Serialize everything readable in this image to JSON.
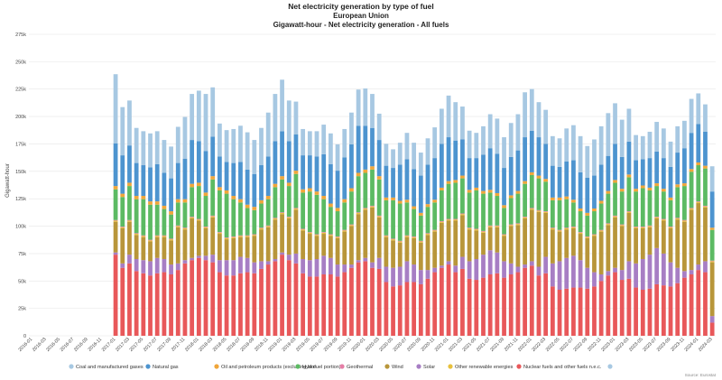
{
  "chart_data": {
    "type": "bar",
    "stacked": true,
    "title": "Net electricity generation by type of fuel",
    "subtitle": "European Union",
    "subtitle2": "Gigawatt-hour - Net electricity generation - All fuels",
    "ylabel": "Gigawatt-hour",
    "xlabel": "",
    "ylim": [
      0,
      275000
    ],
    "yticks": [
      0,
      25000,
      50000,
      75000,
      100000,
      125000,
      150000,
      175000,
      200000,
      225000,
      250000,
      275000
    ],
    "ytick_labels": [
      "0",
      "25k",
      "50k",
      "75k",
      "100k",
      "125k",
      "150k",
      "175k",
      "200k",
      "225k",
      "250k",
      "275k"
    ],
    "grid": true,
    "legend_position": "bottom",
    "source": "Source: Eurostat",
    "categories": [
      "2016-01",
      "2016-02",
      "2016-03",
      "2016-04",
      "2016-05",
      "2016-06",
      "2016-07",
      "2016-08",
      "2016-09",
      "2016-10",
      "2016-11",
      "2016-12",
      "2017-01",
      "2017-02",
      "2017-03",
      "2017-04",
      "2017-05",
      "2017-06",
      "2017-07",
      "2017-08",
      "2017-09",
      "2017-10",
      "2017-11",
      "2017-12",
      "2018-01",
      "2018-02",
      "2018-03",
      "2018-04",
      "2018-05",
      "2018-06",
      "2018-07",
      "2018-08",
      "2018-09",
      "2018-10",
      "2018-11",
      "2018-12",
      "2019-01",
      "2019-02",
      "2019-03",
      "2019-04",
      "2019-05",
      "2019-06",
      "2019-07",
      "2019-08",
      "2019-09",
      "2019-10",
      "2019-11",
      "2019-12",
      "2020-01",
      "2020-02",
      "2020-03",
      "2020-04",
      "2020-05",
      "2020-06",
      "2020-07",
      "2020-08",
      "2020-09",
      "2020-10",
      "2020-11",
      "2020-12",
      "2021-01",
      "2021-02",
      "2021-03",
      "2021-04",
      "2021-05",
      "2021-06",
      "2021-07",
      "2021-08",
      "2021-09",
      "2021-10",
      "2021-11",
      "2021-12",
      "2022-01",
      "2022-02",
      "2022-03",
      "2022-04",
      "2022-05",
      "2022-06",
      "2022-07",
      "2022-08",
      "2022-09",
      "2022-10",
      "2022-11",
      "2022-12",
      "2023-01",
      "2023-02",
      "2023-03",
      "2023-04",
      "2023-05",
      "2023-06",
      "2023-07",
      "2023-08",
      "2023-09",
      "2023-10",
      "2023-11",
      "2023-12",
      "2024-01",
      "2024-02",
      "2024-03"
    ],
    "x_tick_labels": [
      "2016-01",
      "2016-03",
      "2016-05",
      "2016-07",
      "2016-09",
      "2016-11",
      "2017-01",
      "2017-03",
      "2017-05",
      "2017-07",
      "2017-09",
      "2017-11",
      "2018-01",
      "2018-03",
      "2018-05",
      "2018-07",
      "2018-09",
      "2018-11",
      "2019-01",
      "2019-03",
      "2019-05",
      "2019-07",
      "2019-09",
      "2019-11",
      "2020-01",
      "2020-03",
      "2020-05",
      "2020-07",
      "2020-09",
      "2020-11",
      "2021-01",
      "2021-03",
      "2021-05",
      "2021-07",
      "2021-09",
      "2021-11",
      "2022-01",
      "2022-03",
      "2022-05",
      "2022-07",
      "2022-09",
      "2022-11",
      "2023-01",
      "2023-03",
      "2023-05",
      "2023-07",
      "2023-09",
      "2023-11",
      "2024-01",
      "2024-03"
    ],
    "series": [
      {
        "name": "Nuclear fuels and other fuels n.e.c.",
        "color": "#e8585a",
        "values": [
          0,
          0,
          0,
          0,
          0,
          0,
          0,
          0,
          0,
          0,
          0,
          0,
          74000,
          62000,
          66000,
          59000,
          57000,
          55000,
          57000,
          58000,
          56000,
          60000,
          66000,
          69000,
          71000,
          69000,
          67000,
          58000,
          55000,
          55000,
          57000,
          58000,
          57000,
          61000,
          65000,
          68000,
          74000,
          69000,
          66000,
          57000,
          54000,
          54000,
          56000,
          56000,
          54000,
          58000,
          62000,
          67000,
          68000,
          62000,
          61000,
          49000,
          45000,
          46000,
          49000,
          49000,
          47000,
          52000,
          58000,
          62000,
          65000,
          58000,
          61000,
          52000,
          51000,
          53000,
          56000,
          57000,
          53000,
          56000,
          58000,
          62000,
          64000,
          55000,
          57000,
          45000,
          42000,
          43000,
          44000,
          44000,
          43000,
          45000,
          50000,
          55000,
          58000,
          51000,
          52000,
          44000,
          42000,
          43000,
          47000,
          46000,
          45000,
          48000,
          53000,
          56000,
          60000,
          58000,
          12000
        ]
      },
      {
        "name": "Solar",
        "color": "#a77ec4",
        "values": [
          0,
          0,
          0,
          0,
          0,
          0,
          0,
          0,
          0,
          0,
          0,
          0,
          2000,
          4000,
          8000,
          11000,
          12000,
          13000,
          14000,
          12000,
          9000,
          6000,
          3000,
          2000,
          2000,
          4000,
          7000,
          11000,
          14000,
          14000,
          15000,
          13000,
          10000,
          7000,
          3000,
          2000,
          2000,
          5000,
          9000,
          13000,
          15000,
          16000,
          17000,
          15000,
          11000,
          7000,
          3000,
          2000,
          3000,
          5000,
          10000,
          14000,
          17000,
          17000,
          19000,
          16000,
          13000,
          8000,
          4000,
          2000,
          3000,
          6000,
          11000,
          16000,
          19000,
          21000,
          22000,
          19000,
          15000,
          10000,
          5000,
          3000,
          4000,
          8000,
          15000,
          21000,
          26000,
          28000,
          29000,
          25000,
          19000,
          13000,
          6000,
          4000,
          4000,
          9000,
          16000,
          22000,
          28000,
          31000,
          33000,
          29000,
          22000,
          14000,
          6000,
          4000,
          5000,
          10000,
          6000
        ]
      },
      {
        "name": "Wind",
        "color": "#b8963a",
        "values": [
          0,
          0,
          0,
          0,
          0,
          0,
          0,
          0,
          0,
          0,
          0,
          0,
          28000,
          32000,
          30000,
          22000,
          21000,
          18000,
          19000,
          20000,
          22000,
          33000,
          28000,
          36000,
          32000,
          25000,
          34000,
          24000,
          19000,
          20000,
          18000,
          19000,
          24000,
          29000,
          31000,
          36000,
          35000,
          33000,
          40000,
          26000,
          24000,
          21000,
          20000,
          20000,
          24000,
          30000,
          35000,
          42000,
          44000,
          50000,
          37000,
          27000,
          25000,
          22000,
          22000,
          24000,
          25000,
          32000,
          33000,
          39000,
          37000,
          41000,
          38000,
          29000,
          26000,
          20000,
          21000,
          23000,
          23000,
          34000,
          38000,
          42000,
          47000,
          50000,
          40000,
          31000,
          27000,
          26000,
          25000,
          24000,
          27000,
          33000,
          39000,
          42000,
          46000,
          40000,
          44000,
          32000,
          28000,
          25000,
          27000,
          30000,
          31000,
          44000,
          45000,
          55000,
          56000,
          49000,
          49000
        ]
      },
      {
        "name": "Other renewable energies",
        "color": "#e8c13d",
        "values": [
          0,
          0,
          0,
          0,
          0,
          0,
          0,
          0,
          0,
          0,
          0,
          0,
          1000,
          1000,
          1000,
          1000,
          1000,
          1000,
          1000,
          1000,
          1000,
          1000,
          1000,
          1000,
          1000,
          1000,
          1000,
          1000,
          1000,
          1000,
          1000,
          1000,
          1000,
          1000,
          1000,
          1000,
          1000,
          1000,
          1000,
          1000,
          1000,
          1000,
          1000,
          1000,
          1000,
          1000,
          1000,
          1000,
          1000,
          1000,
          1000,
          1000,
          1000,
          1000,
          1000,
          1000,
          1000,
          1000,
          1000,
          1000,
          1000,
          1000,
          1000,
          1000,
          1000,
          1000,
          1000,
          1000,
          1000,
          1000,
          1000,
          1000,
          1000,
          1000,
          1000,
          1000,
          1000,
          1000,
          1000,
          1000,
          1000,
          1000,
          1000,
          1000,
          1000,
          1000,
          1000,
          1000,
          1000,
          1000,
          1000,
          1000,
          1000,
          1000,
          1000,
          1000,
          1000,
          1000,
          1000
        ]
      },
      {
        "name": "Geothermal",
        "color": "#e57ea6",
        "values": [
          0,
          0,
          0,
          0,
          0,
          0,
          0,
          0,
          0,
          0,
          0,
          0,
          600,
          600,
          600,
          600,
          600,
          600,
          600,
          600,
          600,
          600,
          600,
          600,
          600,
          600,
          600,
          600,
          600,
          600,
          600,
          600,
          600,
          600,
          600,
          600,
          600,
          600,
          600,
          600,
          600,
          600,
          600,
          600,
          600,
          600,
          600,
          600,
          600,
          600,
          600,
          600,
          600,
          600,
          600,
          600,
          600,
          600,
          600,
          600,
          600,
          600,
          600,
          600,
          600,
          600,
          600,
          600,
          600,
          600,
          600,
          600,
          600,
          600,
          600,
          600,
          600,
          600,
          600,
          600,
          600,
          600,
          600,
          600,
          600,
          600,
          600,
          600,
          600,
          600,
          600,
          600,
          600,
          600,
          600,
          600,
          600,
          600,
          600
        ]
      },
      {
        "name": "Hydro",
        "color": "#5cba63",
        "values": [
          0,
          0,
          0,
          0,
          0,
          0,
          0,
          0,
          0,
          0,
          0,
          0,
          28000,
          27000,
          31000,
          31000,
          33000,
          32000,
          28000,
          24000,
          22000,
          21000,
          23000,
          27000,
          30000,
          28000,
          33000,
          38000,
          40000,
          34000,
          30000,
          25000,
          22000,
          22000,
          24000,
          28000,
          30000,
          28000,
          31000,
          33000,
          37000,
          36000,
          30000,
          25000,
          23000,
          25000,
          30000,
          33000,
          32000,
          33000,
          33000,
          32000,
          35000,
          34000,
          30000,
          25000,
          23000,
          24000,
          25000,
          28000,
          32000,
          33000,
          32000,
          32000,
          35000,
          34000,
          30000,
          27000,
          24000,
          24000,
          27000,
          30000,
          30000,
          29000,
          27000,
          25000,
          27000,
          26000,
          22000,
          19000,
          19000,
          21000,
          24000,
          27000,
          30000,
          30000,
          31000,
          32000,
          35000,
          32000,
          28000,
          25000,
          24000,
          28000,
          31000,
          33000,
          33000,
          34000,
          28000
        ]
      },
      {
        "name": "Oil and petroleum products (excluding biofuel portion)",
        "color": "#f0a63a",
        "values": [
          0,
          0,
          0,
          0,
          0,
          0,
          0,
          0,
          0,
          0,
          0,
          0,
          3000,
          3000,
          3000,
          3000,
          3000,
          3000,
          3000,
          3000,
          3000,
          3000,
          3000,
          3000,
          3000,
          3000,
          3000,
          3000,
          3000,
          3000,
          3000,
          3000,
          3000,
          3000,
          3000,
          3000,
          3000,
          3000,
          3000,
          3000,
          3000,
          3000,
          3000,
          3000,
          3000,
          3000,
          3000,
          3000,
          3000,
          3000,
          3000,
          2500,
          2500,
          2500,
          2500,
          2500,
          2500,
          2500,
          2500,
          2500,
          2500,
          2500,
          2500,
          2500,
          2500,
          2500,
          2500,
          2500,
          2500,
          2500,
          2500,
          2500,
          2500,
          2500,
          2500,
          2500,
          2500,
          2500,
          2500,
          2500,
          2500,
          2500,
          2500,
          2500,
          2500,
          2500,
          2500,
          2500,
          2500,
          2500,
          2500,
          2500,
          2500,
          2500,
          2500,
          2500,
          2500,
          2500,
          2000
        ]
      },
      {
        "name": "Natural gas",
        "color": "#4d94cf",
        "values": [
          0,
          0,
          0,
          0,
          0,
          0,
          0,
          0,
          0,
          0,
          0,
          0,
          39000,
          35000,
          34000,
          30000,
          28000,
          31000,
          34000,
          30000,
          30000,
          33000,
          37000,
          40000,
          38000,
          38000,
          36000,
          28000,
          26000,
          30000,
          34000,
          32000,
          30000,
          32000,
          36000,
          39000,
          41000,
          38000,
          33000,
          31000,
          30000,
          32000,
          38000,
          36000,
          34000,
          38000,
          40000,
          43000,
          40000,
          35000,
          33000,
          29000,
          27000,
          33000,
          37000,
          34000,
          34000,
          36000,
          38000,
          40000,
          40000,
          36000,
          33000,
          29000,
          27000,
          33000,
          38000,
          36000,
          34000,
          35000,
          37000,
          40000,
          38000,
          35000,
          32000,
          29000,
          28000,
          32000,
          36000,
          33000,
          32000,
          30000,
          33000,
          32000,
          33000,
          29000,
          30000,
          26000,
          24000,
          27000,
          29000,
          28000,
          28000,
          29000,
          32000,
          33000,
          35000,
          31000,
          33000
        ]
      },
      {
        "name": "Coal and manufactured gases",
        "color": "#a7c8e2",
        "values": [
          0,
          0,
          0,
          0,
          0,
          0,
          0,
          0,
          0,
          0,
          0,
          0,
          63000,
          44000,
          41000,
          32000,
          31000,
          31000,
          30000,
          30000,
          29000,
          33000,
          38000,
          42000,
          46000,
          52000,
          45000,
          30000,
          29000,
          31000,
          33000,
          34000,
          31000,
          34000,
          40000,
          43000,
          47000,
          37000,
          30000,
          24000,
          22000,
          23000,
          27000,
          28000,
          24000,
          26000,
          29000,
          33000,
          34000,
          31000,
          24000,
          20000,
          17000,
          20000,
          24000,
          24000,
          21000,
          24000,
          28000,
          32000,
          38000,
          35000,
          30000,
          25000,
          23000,
          26000,
          31000,
          32000,
          28000,
          31000,
          33000,
          41000,
          38000,
          32000,
          31000,
          27000,
          26000,
          30000,
          32000,
          33000,
          29000,
          33000,
          35000,
          39000,
          37000,
          34000,
          30000,
          23000,
          21000,
          24000,
          27000,
          27000,
          23000,
          24000,
          25000,
          31000,
          28000,
          25000,
          23000
        ]
      }
    ]
  }
}
